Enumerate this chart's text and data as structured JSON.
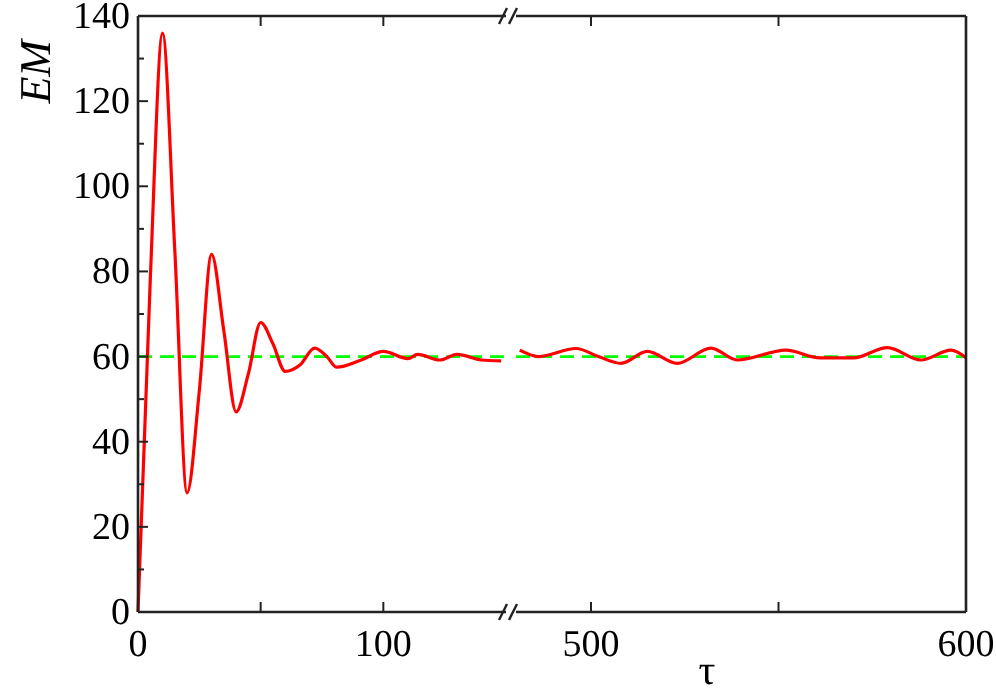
{
  "chart_data": [
    {
      "type": "line",
      "ylabel": "EM",
      "xlim": [
        0,
        150
      ],
      "xticks": [
        0,
        {
          "value": 50,
          "label": null
        },
        100
      ],
      "ylim": [
        0,
        140
      ],
      "yticks": [
        0,
        {
          "value": 10,
          "label": null
        },
        20,
        {
          "value": 30,
          "label": null
        },
        40,
        {
          "value": 50,
          "label": null
        },
        60,
        {
          "value": 70,
          "label": null
        },
        80,
        {
          "value": 90,
          "label": null
        },
        100,
        {
          "value": 110,
          "label": null
        },
        120,
        {
          "value": 130,
          "label": null
        },
        140
      ],
      "grid": false,
      "series": [
        {
          "color": "#ff0000",
          "x": [
            0,
            5,
            10,
            15,
            20,
            25,
            30,
            35,
            40,
            45,
            50,
            55,
            60,
            66,
            72,
            77,
            81,
            91,
            100,
            110,
            114,
            123,
            130,
            140,
            148
          ],
          "values": [
            0,
            78,
            136,
            85,
            28,
            52,
            84,
            66,
            47,
            56,
            68,
            63,
            56.5,
            58,
            62,
            60,
            57.5,
            59.2,
            61.2,
            59.5,
            60.5,
            59.2,
            60.5,
            59.2,
            59
          ]
        }
      ],
      "ref_lines": [
        {
          "axis": "y",
          "value": 60,
          "color": "#00ff00",
          "line_style": "dashed"
        }
      ]
    },
    {
      "type": "line",
      "xlabel": "τ",
      "xlim": [
        480,
        600
      ],
      "xticks": [
        500,
        {
          "value": 550,
          "label": null
        },
        600
      ],
      "ylim": [
        0,
        140
      ],
      "tick_labels": "x",
      "grid": false,
      "series": [
        {
          "color": "#ff0000",
          "x": [
            481,
            486,
            496,
            502,
            508,
            515,
            523,
            532,
            539,
            552,
            561,
            570,
            579,
            588,
            596,
            600
          ],
          "values": [
            61.5,
            60,
            61.9,
            60,
            58.4,
            61.2,
            58.4,
            62,
            59.2,
            61.5,
            59.7,
            59.7,
            62.1,
            59.2,
            61.5,
            59.7
          ]
        }
      ],
      "ref_lines": [
        {
          "axis": "y",
          "value": 60,
          "color": "#00ff00",
          "line_style": "dashed"
        }
      ]
    }
  ]
}
